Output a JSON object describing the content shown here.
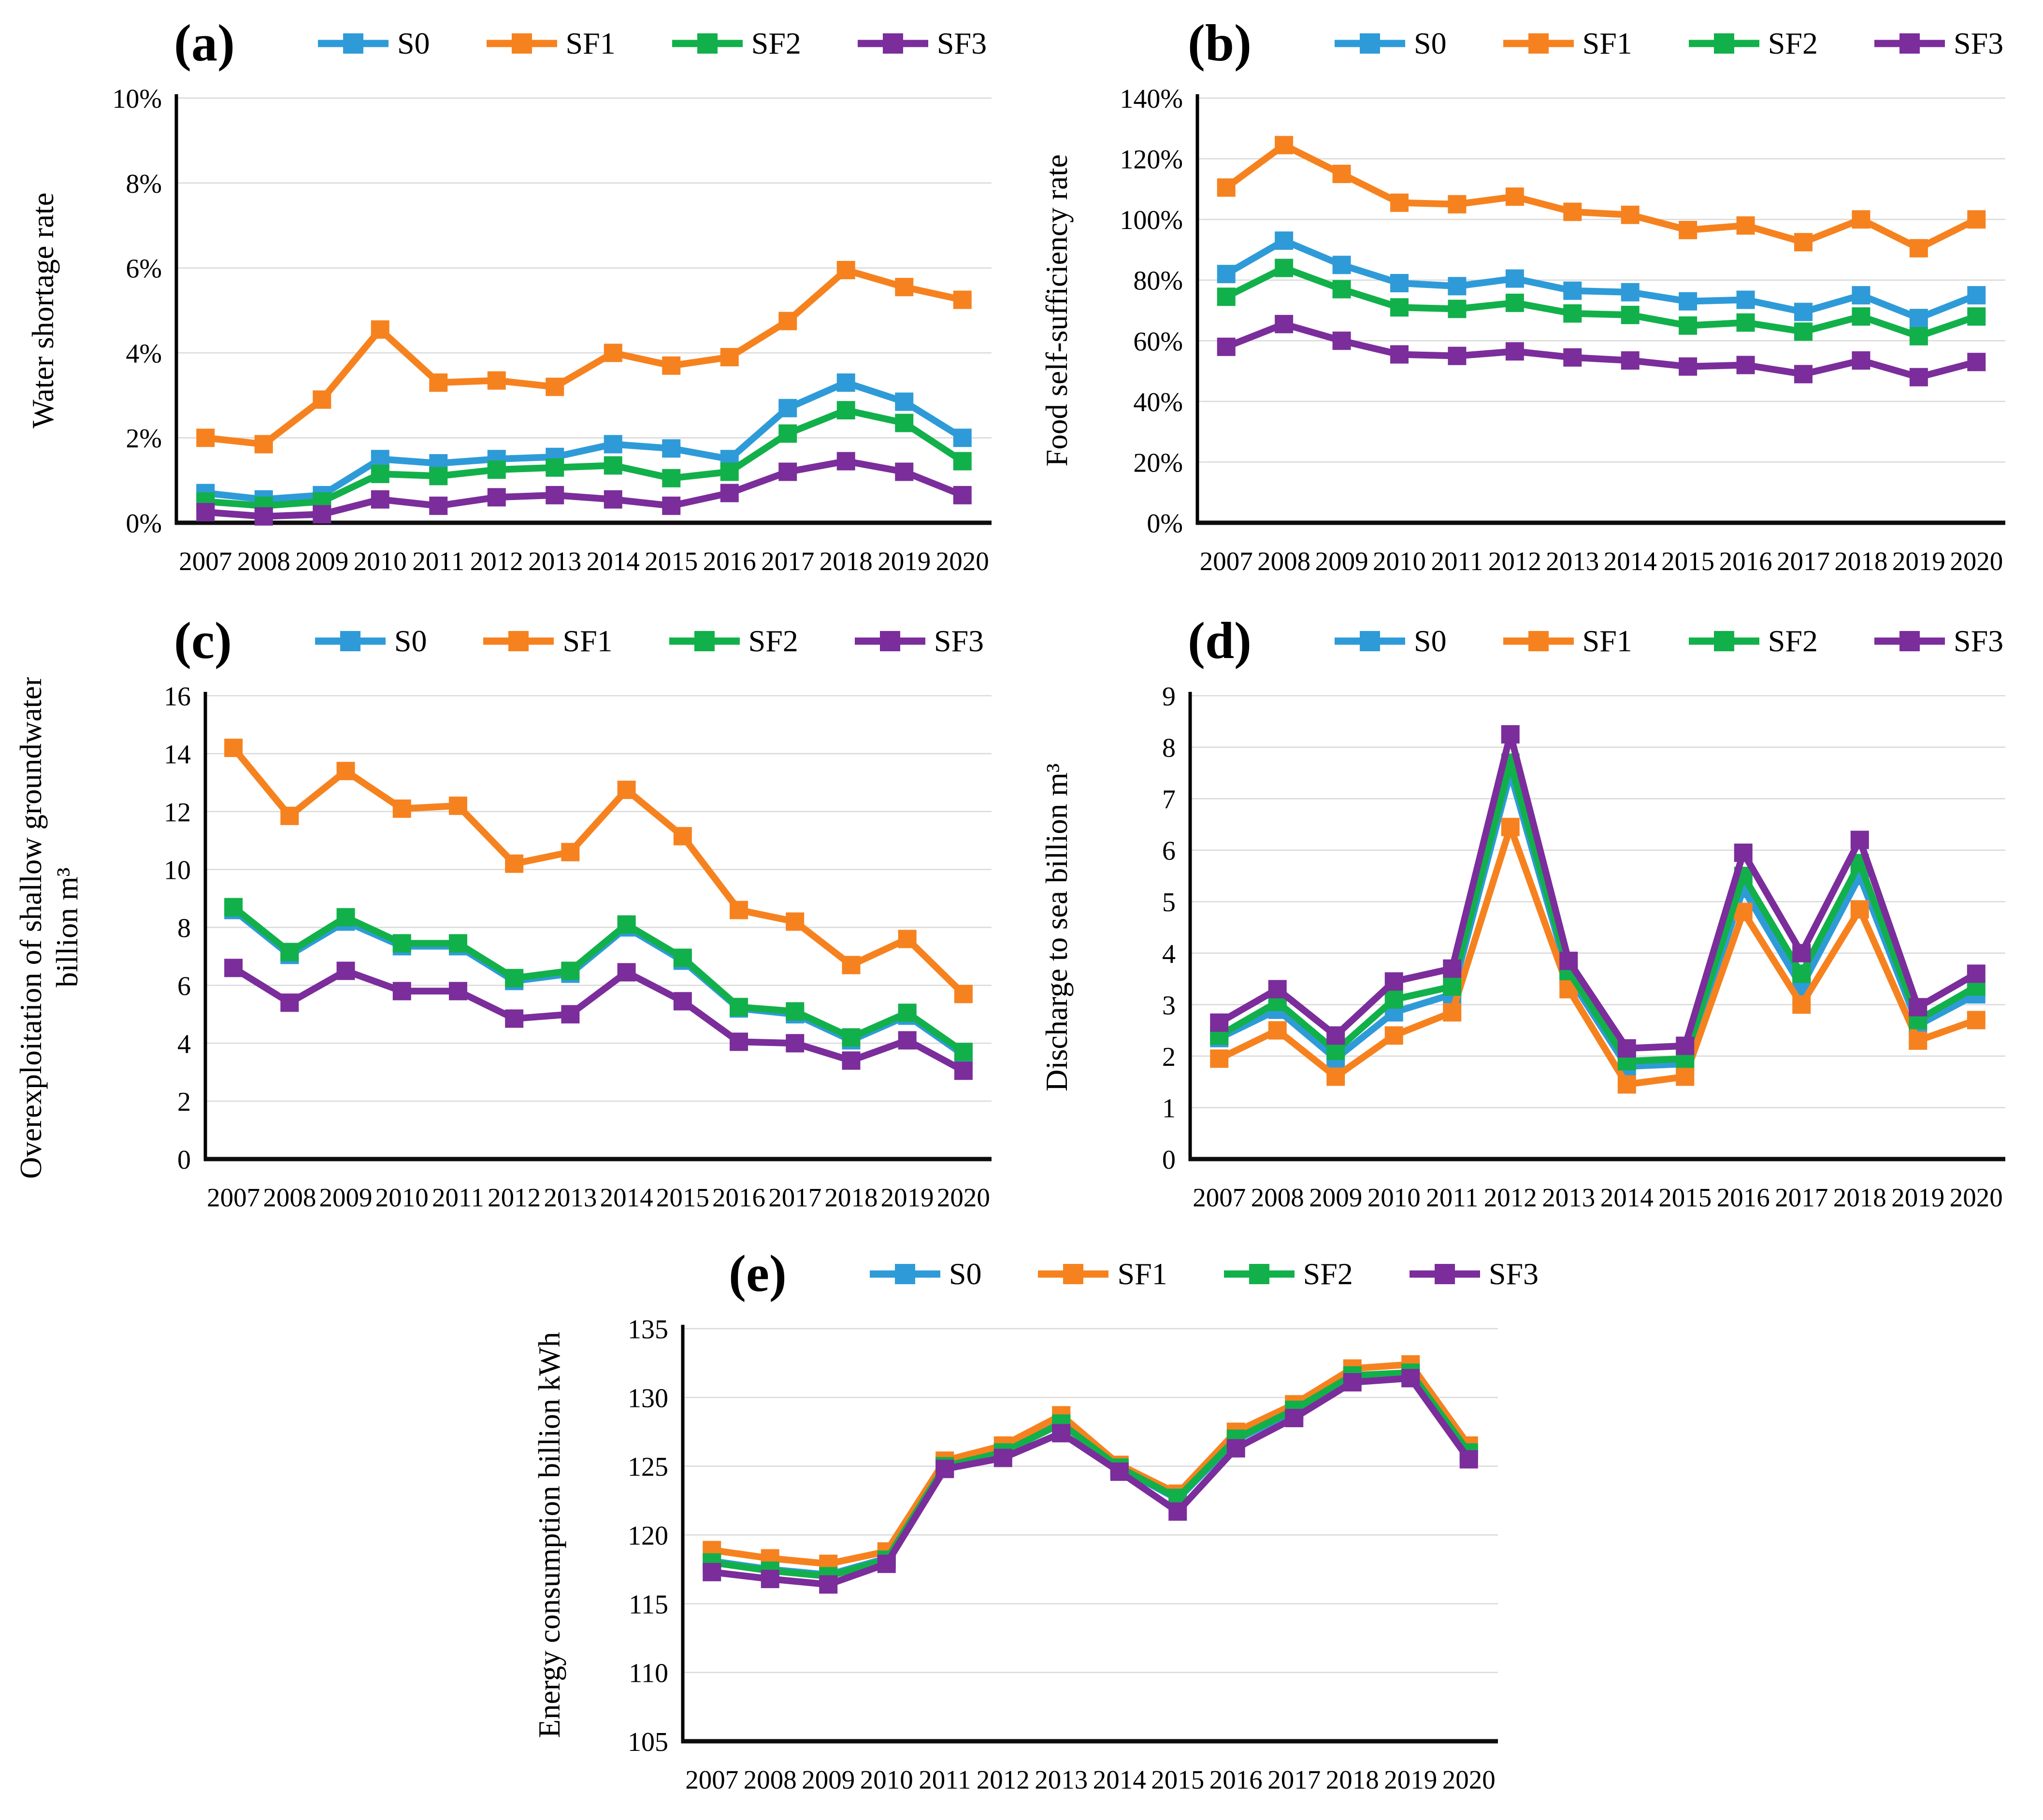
{
  "figure": {
    "background_color": "#ffffff",
    "description_labels": [
      "(a)",
      "(b)",
      "(c)",
      "(d)",
      "(e)"
    ]
  },
  "legend": {
    "items": [
      {
        "label": "S0",
        "color": "#2E9BD8"
      },
      {
        "label": "SF1",
        "color": "#F6821F"
      },
      {
        "label": "SF2",
        "color": "#12B04A"
      },
      {
        "label": "SF3",
        "color": "#7B2D9B"
      }
    ]
  },
  "chart_data": [
    {
      "id": "a",
      "type": "line",
      "panel_label": "(a)",
      "ylabel_lines": [
        "Water shortage rate"
      ],
      "yformat": "percent",
      "ylim": [
        0,
        10
      ],
      "ystep": 2,
      "grid": true,
      "legend_position": "top",
      "categories": [
        "2007",
        "2008",
        "2009",
        "2010",
        "2011",
        "2012",
        "2013",
        "2014",
        "2015",
        "2016",
        "2017",
        "2018",
        "2019",
        "2020"
      ],
      "series": [
        {
          "name": "S0",
          "color": "#2E9BD8",
          "values": [
            0.7,
            0.55,
            0.65,
            1.5,
            1.4,
            1.5,
            1.55,
            1.85,
            1.75,
            1.5,
            2.7,
            3.3,
            2.85,
            2.0
          ]
        },
        {
          "name": "SF1",
          "color": "#F6821F",
          "values": [
            2.0,
            1.85,
            2.9,
            4.55,
            3.3,
            3.35,
            3.2,
            4.0,
            3.7,
            3.9,
            4.75,
            5.95,
            5.55,
            5.25
          ]
        },
        {
          "name": "SF2",
          "color": "#12B04A",
          "values": [
            0.5,
            0.4,
            0.5,
            1.15,
            1.1,
            1.25,
            1.3,
            1.35,
            1.05,
            1.2,
            2.1,
            2.65,
            2.35,
            1.45
          ]
        },
        {
          "name": "SF3",
          "color": "#7B2D9B",
          "values": [
            0.25,
            0.15,
            0.2,
            0.55,
            0.4,
            0.6,
            0.65,
            0.55,
            0.4,
            0.7,
            1.2,
            1.45,
            1.2,
            0.65
          ]
        }
      ]
    },
    {
      "id": "b",
      "type": "line",
      "panel_label": "(b)",
      "ylabel_lines": [
        "Food self-sufficiency rate"
      ],
      "yformat": "percent",
      "ylim": [
        0,
        140
      ],
      "ystep": 20,
      "grid": true,
      "legend_position": "top",
      "categories": [
        "2007",
        "2008",
        "2009",
        "2010",
        "2011",
        "2012",
        "2013",
        "2014",
        "2015",
        "2016",
        "2017",
        "2018",
        "2019",
        "2020"
      ],
      "series": [
        {
          "name": "S0",
          "color": "#2E9BD8",
          "values": [
            82,
            93,
            85,
            79,
            78,
            80.5,
            76.5,
            76,
            73,
            73.5,
            69.5,
            75,
            67.5,
            75
          ]
        },
        {
          "name": "SF1",
          "color": "#F6821F",
          "values": [
            110.5,
            124.5,
            115,
            105.5,
            105,
            107.5,
            102.5,
            101.5,
            96.5,
            98,
            92.5,
            100,
            90.5,
            100
          ]
        },
        {
          "name": "SF2",
          "color": "#12B04A",
          "values": [
            74.5,
            84,
            77,
            71,
            70.5,
            72.5,
            69,
            68.5,
            65,
            66,
            63,
            68,
            61.5,
            68
          ]
        },
        {
          "name": "SF3",
          "color": "#7B2D9B",
          "values": [
            58,
            65.5,
            60,
            55.5,
            55,
            56.5,
            54.5,
            53.5,
            51.5,
            52,
            49,
            53.5,
            48,
            53
          ]
        }
      ]
    },
    {
      "id": "c",
      "type": "line",
      "panel_label": "(c)",
      "ylabel_lines": [
        "Overexploitation of shallow groundwater",
        "billion m³"
      ],
      "yformat": "number",
      "ylim": [
        0,
        16
      ],
      "ystep": 2,
      "grid": true,
      "legend_position": "top",
      "categories": [
        "2007",
        "2008",
        "2009",
        "2010",
        "2011",
        "2012",
        "2013",
        "2014",
        "2015",
        "2016",
        "2017",
        "2018",
        "2019",
        "2020"
      ],
      "series": [
        {
          "name": "S0",
          "color": "#2E9BD8",
          "values": [
            8.6,
            7.05,
            8.2,
            7.35,
            7.35,
            6.15,
            6.4,
            8.0,
            6.85,
            5.2,
            5.0,
            4.1,
            4.95,
            3.6
          ]
        },
        {
          "name": "SF1",
          "color": "#F6821F",
          "values": [
            14.2,
            11.85,
            13.4,
            12.1,
            12.2,
            10.2,
            10.6,
            12.75,
            11.15,
            8.6,
            8.2,
            6.7,
            7.6,
            5.7
          ]
        },
        {
          "name": "SF2",
          "color": "#12B04A",
          "values": [
            8.7,
            7.15,
            8.35,
            7.45,
            7.45,
            6.25,
            6.5,
            8.1,
            6.95,
            5.25,
            5.1,
            4.2,
            5.05,
            3.7
          ]
        },
        {
          "name": "SF3",
          "color": "#7B2D9B",
          "values": [
            6.6,
            5.4,
            6.5,
            5.8,
            5.8,
            4.85,
            5.0,
            6.45,
            5.45,
            4.05,
            4.0,
            3.4,
            4.1,
            3.05
          ]
        }
      ]
    },
    {
      "id": "d",
      "type": "line",
      "panel_label": "(d)",
      "ylabel_lines": [
        "Discharge to sea billion m³"
      ],
      "yformat": "number",
      "ylim": [
        0,
        9
      ],
      "ystep": 1,
      "grid": true,
      "legend_position": "top",
      "categories": [
        "2007",
        "2008",
        "2009",
        "2010",
        "2011",
        "2012",
        "2013",
        "2014",
        "2015",
        "2016",
        "2017",
        "2018",
        "2019",
        "2020"
      ],
      "series": [
        {
          "name": "S0",
          "color": "#2E9BD8",
          "values": [
            2.35,
            2.9,
            1.95,
            2.85,
            3.2,
            7.5,
            3.55,
            1.8,
            1.85,
            5.25,
            3.35,
            5.5,
            2.6,
            3.2
          ]
        },
        {
          "name": "SF1",
          "color": "#F6821F",
          "values": [
            1.95,
            2.5,
            1.6,
            2.4,
            2.85,
            6.45,
            3.3,
            1.45,
            1.6,
            4.8,
            3.0,
            4.85,
            2.3,
            2.7
          ]
        },
        {
          "name": "SF2",
          "color": "#12B04A",
          "values": [
            2.4,
            3.05,
            2.1,
            3.1,
            3.35,
            7.7,
            3.65,
            1.9,
            1.95,
            5.5,
            3.6,
            5.75,
            2.7,
            3.35
          ]
        },
        {
          "name": "SF3",
          "color": "#7B2D9B",
          "values": [
            2.65,
            3.3,
            2.4,
            3.45,
            3.7,
            8.25,
            3.85,
            2.15,
            2.2,
            5.95,
            4.0,
            6.2,
            2.95,
            3.6
          ]
        }
      ]
    },
    {
      "id": "e",
      "type": "line",
      "panel_label": "(e)",
      "ylabel_lines": [
        "Energy consumption billion kWh"
      ],
      "yformat": "number",
      "ylim": [
        105,
        135
      ],
      "ystep": 5,
      "grid": true,
      "legend_position": "top",
      "categories": [
        "2007",
        "2008",
        "2009",
        "2010",
        "2011",
        "2012",
        "2013",
        "2014",
        "2015",
        "2016",
        "2017",
        "2018",
        "2019",
        "2020"
      ],
      "series": [
        {
          "name": "S0",
          "color": "#2E9BD8",
          "values": [
            118.1,
            117.5,
            117.1,
            118.3,
            125.1,
            126.1,
            128.2,
            124.9,
            122.6,
            126.9,
            129.0,
            131.5,
            131.7,
            125.9
          ]
        },
        {
          "name": "SF1",
          "color": "#F6821F",
          "values": [
            118.9,
            118.3,
            117.9,
            118.8,
            125.4,
            126.5,
            128.7,
            125.1,
            123.0,
            127.5,
            129.5,
            132.1,
            132.4,
            126.5
          ]
        },
        {
          "name": "SF2",
          "color": "#12B04A",
          "values": [
            118.0,
            117.4,
            117.0,
            118.2,
            125.0,
            126.0,
            128.1,
            124.9,
            122.7,
            127.0,
            129.1,
            131.6,
            131.8,
            126.0
          ]
        },
        {
          "name": "SF3",
          "color": "#7B2D9B",
          "values": [
            117.3,
            116.8,
            116.4,
            117.9,
            124.8,
            125.6,
            127.4,
            124.6,
            121.7,
            126.3,
            128.5,
            131.1,
            131.4,
            125.5
          ]
        }
      ]
    }
  ]
}
